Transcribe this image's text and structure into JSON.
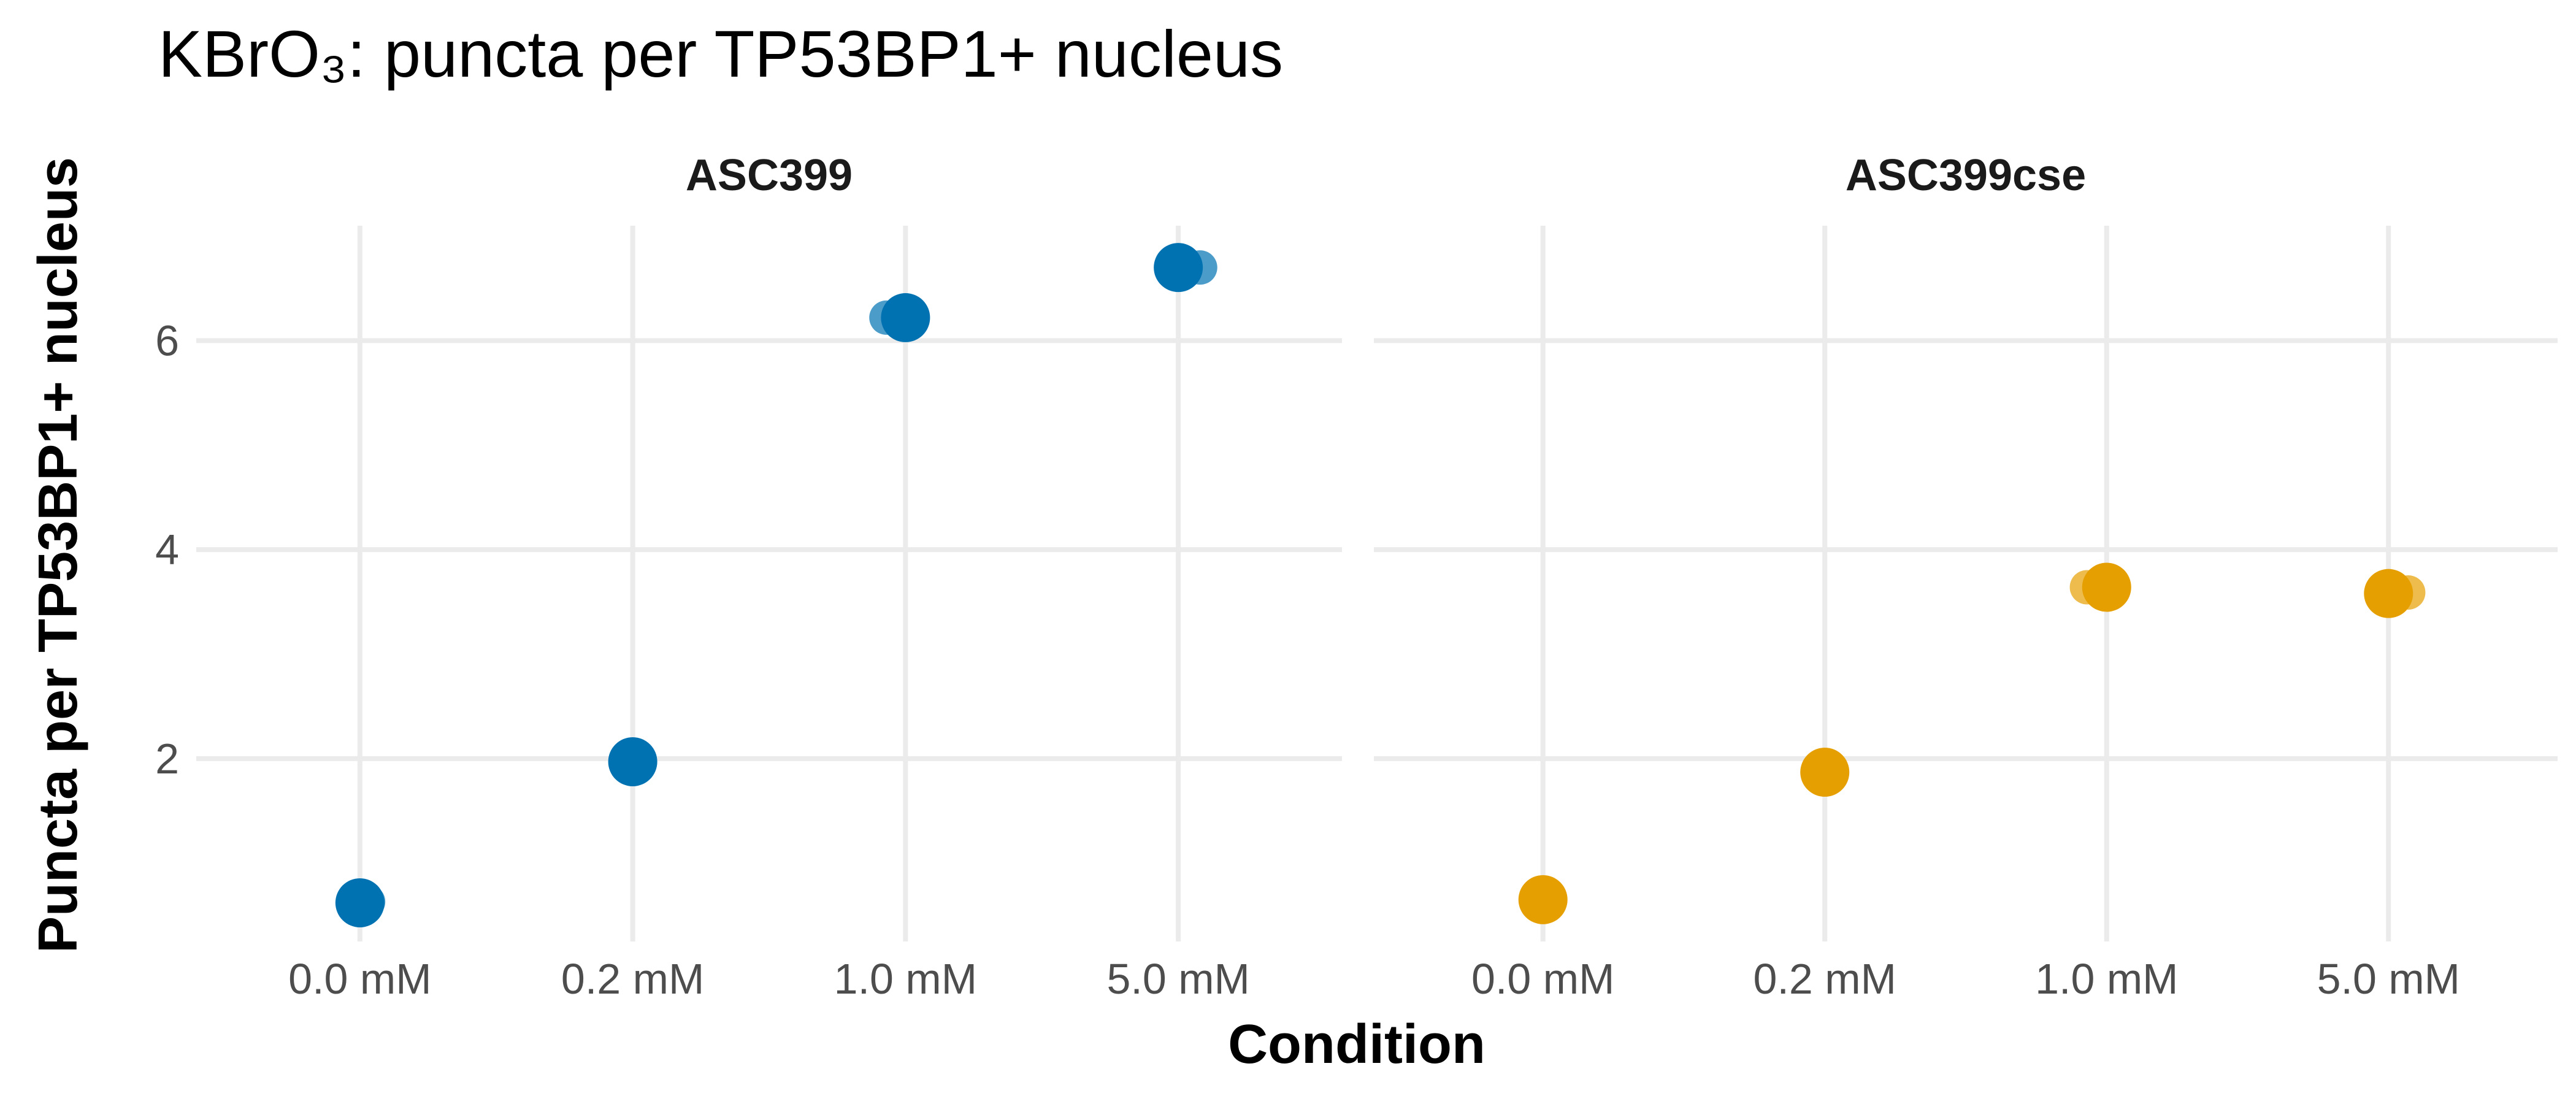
{
  "chart_data": {
    "type": "scatter",
    "title": "KBrO₃: puncta per TP53BP1+ nucleus",
    "xlabel": "Condition",
    "ylabel": "Puncta per TP53BP1+ nucleus",
    "categories": [
      "0.0 mM",
      "0.2 mM",
      "1.0 mM",
      "5.0 mM"
    ],
    "ylim": [
      0.25,
      7.1
    ],
    "yticks": [
      2,
      4,
      6
    ],
    "grid": true,
    "legend": "none",
    "panels": [
      {
        "name": "ASC399",
        "color": "#0072B2",
        "summary": [
          0.62,
          1.97,
          6.22,
          6.7
        ],
        "replicates": [
          {
            "category": "0.0 mM",
            "value": 0.63,
            "jitter": 0.03
          },
          {
            "category": "0.2 mM",
            "value": 1.97,
            "jitter": 0.0
          },
          {
            "category": "1.0 mM",
            "value": 6.22,
            "jitter": -0.07
          },
          {
            "category": "5.0 mM",
            "value": 6.7,
            "jitter": 0.08
          }
        ]
      },
      {
        "name": "ASC399cse",
        "color": "#E69F00",
        "summary": [
          0.65,
          1.87,
          3.64,
          3.58
        ],
        "replicates": [
          {
            "category": "0.0 mM",
            "value": 0.65,
            "jitter": 0.0
          },
          {
            "category": "0.2 mM",
            "value": 1.87,
            "jitter": 0.0
          },
          {
            "category": "1.0 mM",
            "value": 3.64,
            "jitter": -0.07
          },
          {
            "category": "5.0 mM",
            "value": 3.59,
            "jitter": 0.07
          }
        ]
      }
    ]
  }
}
